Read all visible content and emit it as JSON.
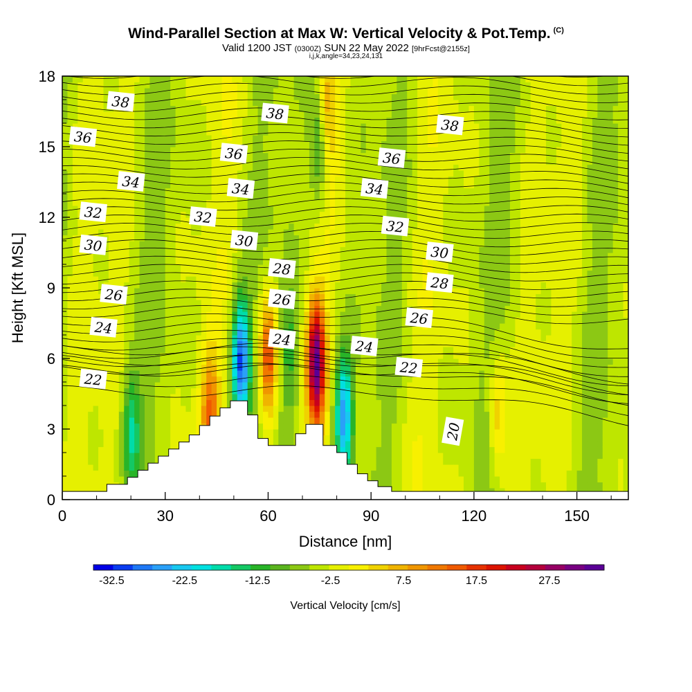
{
  "title": "Wind-Parallel Section at Max W: Vertical Velocity & Pot.Temp.",
  "copyright": "(C)",
  "valid_main_a": "Valid 1200 JST",
  "valid_small_a": "(0300Z)",
  "valid_main_b": "SUN 22 May 2022",
  "valid_small_b": "[9hrFcst@2155z]",
  "subtitle2": "i,j,k,angle=34,23,24,131",
  "chart_data": {
    "type": "heatmap",
    "xlabel": "Distance [nm]",
    "ylabel": "Height [Kft MSL]",
    "xlim": [
      0,
      165
    ],
    "ylim": [
      0,
      18
    ],
    "xticks": [
      0,
      30,
      60,
      90,
      120,
      150
    ],
    "yticks": [
      0,
      3,
      6,
      9,
      12,
      15,
      18
    ],
    "colorbar": {
      "label": "Vertical Velocity [cm/s]",
      "tick_labels": [
        "-32.5",
        "-22.5",
        "-12.5",
        "-2.5",
        "7.5",
        "17.5",
        "27.5"
      ],
      "tick_values": [
        -32.5,
        -22.5,
        -12.5,
        -2.5,
        7.5,
        17.5,
        27.5
      ],
      "range": [
        -35,
        35
      ],
      "colors": [
        "#0000e6",
        "#0a3cf0",
        "#1e78f5",
        "#2aa0f8",
        "#18c8f0",
        "#00e0e0",
        "#00dcaa",
        "#14c864",
        "#28b428",
        "#5ab41e",
        "#8cc814",
        "#bee600",
        "#e6f000",
        "#f8f000",
        "#f0d200",
        "#f0b400",
        "#f09600",
        "#f07800",
        "#f05a00",
        "#e63200",
        "#dc1400",
        "#c8001e",
        "#b4003c",
        "#960064",
        "#780082",
        "#5a0096"
      ],
      "background_w_range": [
        -8,
        1
      ]
    },
    "features": [
      {
        "x": 20,
        "z": 3.0,
        "w": -12
      },
      {
        "x": 43,
        "z": 3.8,
        "w": 15
      },
      {
        "x": 52,
        "z": 6.0,
        "w": -25
      },
      {
        "x": 60,
        "z": 6.0,
        "w": 20
      },
      {
        "x": 66,
        "z": 6.5,
        "w": -8
      },
      {
        "x": 74,
        "z": 5.8,
        "w": 33
      },
      {
        "x": 75,
        "z": 15.0,
        "w": -12
      },
      {
        "x": 77,
        "z": 16.5,
        "w": 10
      },
      {
        "x": 82,
        "z": 3.6,
        "w": -22
      },
      {
        "x": 127,
        "z": 3.5,
        "w": 10
      }
    ],
    "contour_series": {
      "name": "Potential temperature",
      "labels": [
        {
          "text": "38",
          "x": 17,
          "z": 16.9
        },
        {
          "text": "38",
          "x": 62,
          "z": 16.4
        },
        {
          "text": "38",
          "x": 113,
          "z": 15.9
        },
        {
          "text": "36",
          "x": 6,
          "z": 15.4
        },
        {
          "text": "36",
          "x": 50,
          "z": 14.7
        },
        {
          "text": "36",
          "x": 96,
          "z": 14.5
        },
        {
          "text": "34",
          "x": 20,
          "z": 13.5
        },
        {
          "text": "34",
          "x": 52,
          "z": 13.2
        },
        {
          "text": "34",
          "x": 91,
          "z": 13.2
        },
        {
          "text": "32",
          "x": 9,
          "z": 12.2
        },
        {
          "text": "32",
          "x": 41,
          "z": 12.0
        },
        {
          "text": "32",
          "x": 97,
          "z": 11.6
        },
        {
          "text": "30",
          "x": 9,
          "z": 10.8
        },
        {
          "text": "30",
          "x": 53,
          "z": 11.0
        },
        {
          "text": "30",
          "x": 110,
          "z": 10.5
        },
        {
          "text": "28",
          "x": 64,
          "z": 9.8
        },
        {
          "text": "28",
          "x": 110,
          "z": 9.2
        },
        {
          "text": "26",
          "x": 15,
          "z": 8.7
        },
        {
          "text": "26",
          "x": 64,
          "z": 8.5
        },
        {
          "text": "26",
          "x": 104,
          "z": 7.7
        },
        {
          "text": "24",
          "x": 12,
          "z": 7.3
        },
        {
          "text": "24",
          "x": 64,
          "z": 6.8
        },
        {
          "text": "24",
          "x": 88,
          "z": 6.5
        },
        {
          "text": "22",
          "x": 9,
          "z": 5.1
        },
        {
          "text": "22",
          "x": 101,
          "z": 5.6
        },
        {
          "text": "20",
          "x": 114,
          "z": 2.9
        }
      ]
    },
    "terrain": [
      [
        0,
        0.35
      ],
      [
        10,
        0.35
      ],
      [
        13,
        0.65
      ],
      [
        16,
        0.65
      ],
      [
        19,
        0.95
      ],
      [
        22,
        1.25
      ],
      [
        25,
        1.55
      ],
      [
        28,
        1.85
      ],
      [
        31,
        2.15
      ],
      [
        34,
        2.45
      ],
      [
        37,
        2.75
      ],
      [
        40,
        3.15
      ],
      [
        43,
        3.55
      ],
      [
        46,
        3.9
      ],
      [
        49,
        4.2
      ],
      [
        53,
        4.2
      ],
      [
        54,
        3.6
      ],
      [
        57,
        2.6
      ],
      [
        60,
        2.3
      ],
      [
        65,
        2.3
      ],
      [
        68,
        2.8
      ],
      [
        71,
        3.2
      ],
      [
        74,
        3.2
      ],
      [
        76,
        2.3
      ],
      [
        80,
        2.0
      ],
      [
        83,
        1.5
      ],
      [
        86,
        1.1
      ],
      [
        89,
        0.8
      ],
      [
        92,
        0.55
      ],
      [
        96,
        0.35
      ],
      [
        165,
        0.35
      ]
    ]
  }
}
